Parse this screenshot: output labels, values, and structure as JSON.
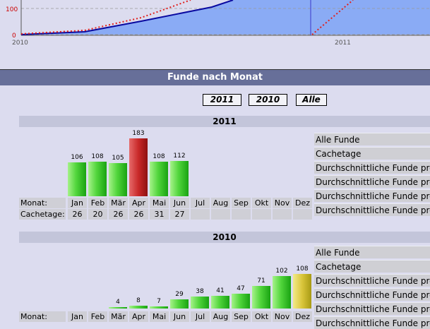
{
  "plot": {
    "y_ticks": [
      "100",
      "0"
    ],
    "x_ticks": [
      "2010",
      "2011"
    ]
  },
  "section_title": "Funde nach Monat",
  "year_buttons": [
    "2011",
    "2010",
    "Alle"
  ],
  "months": [
    "Jan",
    "Feb",
    "Mär",
    "Apr",
    "Mai",
    "Jun",
    "Jul",
    "Aug",
    "Sep",
    "Okt",
    "Nov",
    "Dez"
  ],
  "row_labels": {
    "month": "Monat:",
    "cachetage": "Cachetage:"
  },
  "stat_labels": [
    "Alle Funde",
    "Cachetage",
    "Durchschnittliche Funde pro",
    "Durchschnittliche Funde pro",
    "Durchschnittliche Funde pro",
    "Durchschnittliche Funde pro"
  ],
  "years": [
    {
      "year": "2011",
      "values": [
        106,
        108,
        105,
        183,
        108,
        112,
        null,
        null,
        null,
        null,
        null,
        null
      ],
      "value_labels": [
        "106",
        "108",
        "105",
        "183",
        "108",
        "112",
        "",
        "",
        "",
        "",
        "",
        ""
      ],
      "colors": [
        "g",
        "g",
        "g",
        "r",
        "g",
        "g",
        "",
        "",
        "",
        "",
        "",
        ""
      ],
      "cachetage": [
        "26",
        "20",
        "26",
        "26",
        "31",
        "27",
        "",
        "",
        "",
        "",
        "",
        ""
      ]
    },
    {
      "year": "2010",
      "values": [
        null,
        null,
        4,
        8,
        7,
        29,
        38,
        41,
        47,
        71,
        102,
        108
      ],
      "value_labels": [
        "",
        "",
        "4",
        "8",
        "7",
        "29",
        "38",
        "41",
        "47",
        "71",
        "102",
        "108"
      ],
      "colors": [
        "",
        "",
        "g",
        "g",
        "g",
        "g",
        "g",
        "g",
        "g",
        "g",
        "g",
        "y"
      ]
    }
  ],
  "colors": {
    "accent": "#676f99",
    "area": "#8aabf5",
    "line": "#0a0aa0",
    "dotted": "#e0201e"
  }
}
